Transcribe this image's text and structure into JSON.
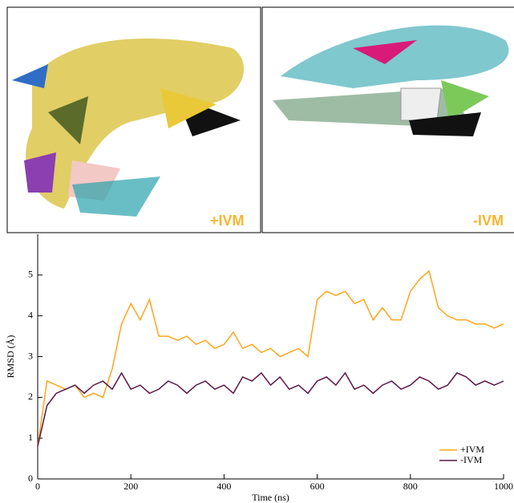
{
  "panels": [
    {
      "label": "+IVM"
    },
    {
      "label": "-IVM"
    }
  ],
  "chart_data": {
    "type": "line",
    "xlabel": "Time (ns)",
    "ylabel": "RMSD (Å)",
    "x": [
      0,
      20,
      40,
      60,
      80,
      100,
      120,
      140,
      160,
      180,
      200,
      220,
      240,
      260,
      280,
      300,
      320,
      340,
      360,
      380,
      400,
      420,
      440,
      460,
      480,
      500,
      520,
      540,
      560,
      580,
      600,
      620,
      640,
      660,
      680,
      700,
      720,
      740,
      760,
      780,
      800,
      820,
      840,
      860,
      880,
      900,
      920,
      940,
      960,
      980,
      1000
    ],
    "series": [
      {
        "name": "+IVM",
        "color": "#ffa51c",
        "values": [
          0.8,
          2.4,
          2.3,
          2.2,
          2.3,
          2.0,
          2.1,
          2.0,
          2.7,
          3.8,
          4.3,
          3.9,
          4.4,
          3.5,
          3.5,
          3.4,
          3.5,
          3.3,
          3.4,
          3.2,
          3.3,
          3.6,
          3.2,
          3.3,
          3.1,
          3.2,
          3.0,
          3.1,
          3.2,
          3.0,
          4.4,
          4.6,
          4.5,
          4.6,
          4.3,
          4.4,
          3.9,
          4.2,
          3.9,
          3.9,
          4.6,
          4.9,
          5.1,
          4.2,
          4.0,
          3.9,
          3.9,
          3.8,
          3.8,
          3.7,
          3.8
        ]
      },
      {
        "name": "-IVM",
        "color": "#5a1646",
        "values": [
          0.8,
          1.8,
          2.1,
          2.2,
          2.3,
          2.1,
          2.3,
          2.4,
          2.2,
          2.6,
          2.2,
          2.3,
          2.1,
          2.2,
          2.4,
          2.3,
          2.1,
          2.3,
          2.4,
          2.2,
          2.3,
          2.1,
          2.5,
          2.4,
          2.6,
          2.3,
          2.5,
          2.2,
          2.3,
          2.1,
          2.4,
          2.5,
          2.3,
          2.6,
          2.2,
          2.3,
          2.1,
          2.3,
          2.4,
          2.2,
          2.3,
          2.5,
          2.4,
          2.2,
          2.3,
          2.6,
          2.5,
          2.3,
          2.4,
          2.3,
          2.4
        ]
      }
    ],
    "xlim": [
      0,
      1000
    ],
    "xticks": [
      0,
      200,
      400,
      600,
      800,
      1000
    ],
    "ylim": [
      0,
      6
    ],
    "yticks": [
      0,
      1,
      2,
      3,
      4,
      5
    ],
    "legend": "lower right"
  }
}
